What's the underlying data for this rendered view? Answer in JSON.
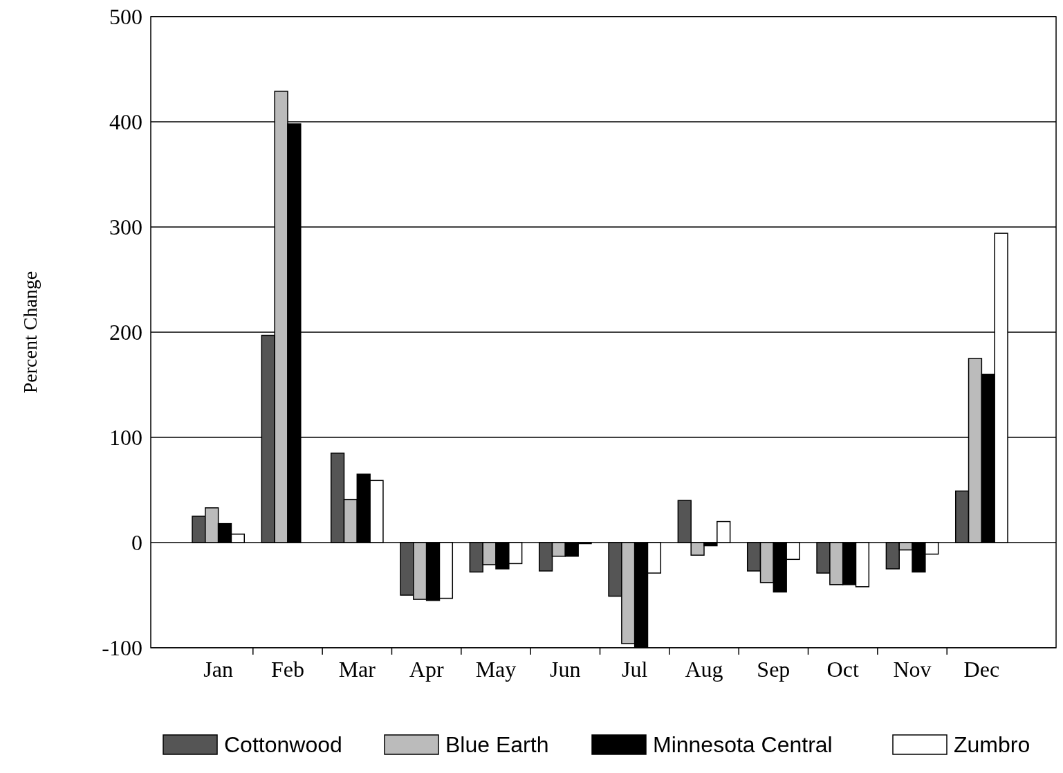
{
  "chart_data": {
    "type": "bar",
    "ylabel": "Percent Change",
    "categories": [
      "Jan",
      "Feb",
      "Mar",
      "Apr",
      "May",
      "Jun",
      "Jul",
      "Aug",
      "Sep",
      "Oct",
      "Nov",
      "Dec"
    ],
    "series": [
      {
        "name": "Cottonwood",
        "color": "#555555",
        "values": [
          25,
          197,
          85,
          -50,
          -28,
          -27,
          -51,
          40,
          -27,
          -29,
          -25,
          49
        ]
      },
      {
        "name": "Blue Earth",
        "color": "#bbbbbb",
        "values": [
          33,
          429,
          41,
          -54,
          -21,
          -13,
          -96,
          -12,
          -38,
          -40,
          -7,
          175
        ]
      },
      {
        "name": "Minnesota Central",
        "color": "#000000",
        "values": [
          18,
          398,
          65,
          -55,
          -25,
          -13,
          -100,
          -3,
          -47,
          -40,
          -28,
          160
        ]
      },
      {
        "name": "Zumbro",
        "color": "#ffffff",
        "values": [
          8,
          null,
          59,
          -53,
          -20,
          -1,
          -29,
          20,
          -16,
          -42,
          -11,
          294
        ]
      }
    ],
    "ylim": [
      -100,
      500
    ],
    "yticks": [
      -100,
      0,
      100,
      200,
      300,
      400,
      500
    ],
    "grid": "y",
    "legend": "bottom"
  }
}
